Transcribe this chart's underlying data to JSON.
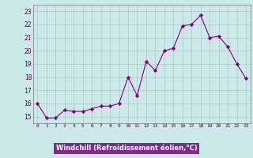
{
  "x": [
    0,
    1,
    2,
    3,
    4,
    5,
    6,
    7,
    8,
    9,
    10,
    11,
    12,
    13,
    14,
    15,
    16,
    17,
    18,
    19,
    20,
    21,
    22,
    23
  ],
  "y": [
    16.0,
    14.9,
    14.9,
    15.5,
    15.4,
    15.4,
    15.6,
    15.8,
    15.8,
    16.0,
    18.0,
    16.6,
    19.2,
    18.5,
    20.0,
    20.2,
    21.9,
    22.0,
    22.7,
    21.0,
    21.1,
    20.3,
    19.0,
    17.9
  ],
  "line_color": "#800080",
  "marker": "D",
  "marker_size": 2.2,
  "bg_color": "#cce8e8",
  "grid_color": "#aacccc",
  "xlabel": "Windchill (Refroidissement éolien,°C)",
  "xlabel_bg": "#7b2d8b",
  "xlabel_color": "#ffffff",
  "ylim_min": 14.5,
  "ylim_max": 23.5,
  "ytick_min": 15,
  "ytick_max": 23,
  "xtick_labels": [
    "0",
    "1",
    "2",
    "3",
    "4",
    "5",
    "6",
    "7",
    "8",
    "9",
    "10",
    "11",
    "12",
    "13",
    "14",
    "15",
    "16",
    "17",
    "18",
    "19",
    "20",
    "21",
    "22",
    "23"
  ]
}
